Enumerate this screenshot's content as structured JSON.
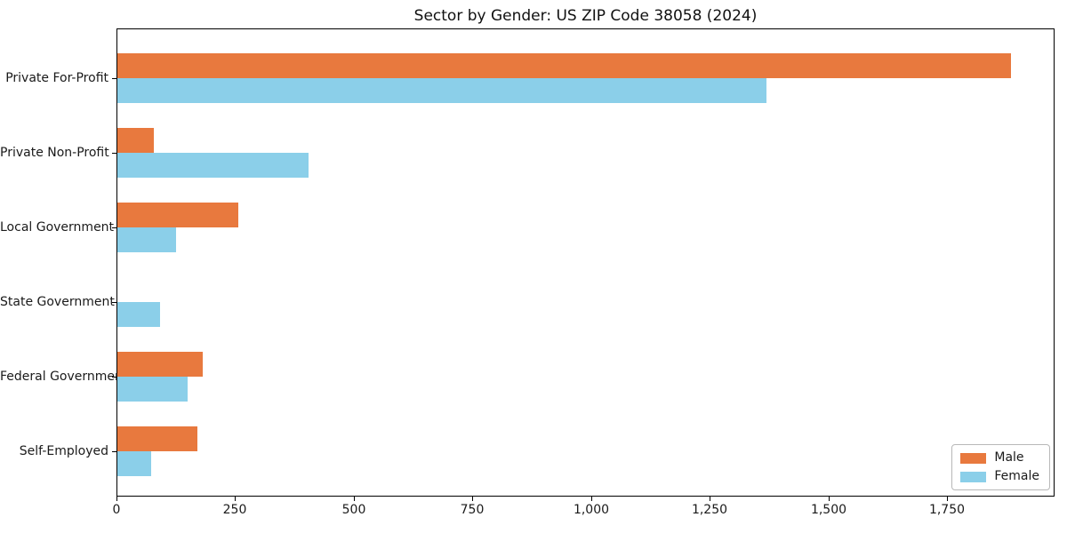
{
  "chart_data": {
    "type": "bar",
    "orientation": "horizontal",
    "title": "Sector by Gender: US ZIP Code 38058 (2024)",
    "categories": [
      "Private For-Profit",
      "Private Non-Profit",
      "Local Government",
      "State Government",
      "Federal Government",
      "Self-Employed"
    ],
    "series": [
      {
        "name": "Male",
        "color": "#e8793e",
        "values": [
          1882,
          77,
          255,
          0,
          180,
          169
        ]
      },
      {
        "name": "Female",
        "color": "#8bcfe9",
        "values": [
          1367,
          403,
          124,
          90,
          148,
          71
        ]
      }
    ],
    "xlabel": "",
    "ylabel": "",
    "xlim": [
      0,
      1976
    ],
    "xticks": [
      0,
      250,
      500,
      750,
      1000,
      1250,
      1500,
      1750
    ],
    "xtick_labels": [
      "0",
      "250",
      "500",
      "750",
      "1,000",
      "1,250",
      "1,500",
      "1,750"
    ],
    "grid": false,
    "legend": {
      "position": "lower right"
    },
    "colors": {
      "spine": "#000000",
      "text": "#1a1a1a",
      "background": "#ffffff"
    }
  }
}
